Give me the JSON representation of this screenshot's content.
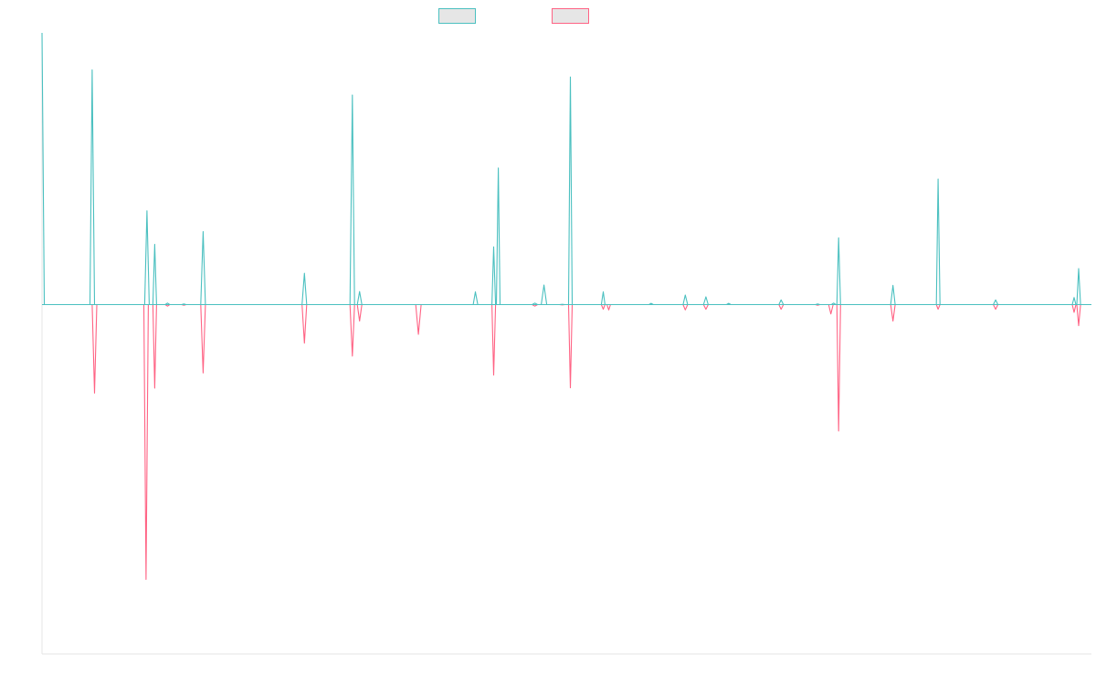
{
  "chart_data": {
    "type": "line",
    "title": "",
    "xlabel": "",
    "ylabel": "",
    "x_range": [
      0,
      1
    ],
    "ylim": [
      -1.0,
      1.0
    ],
    "grid": false,
    "legend_position": "top-center",
    "baseline": 0.125,
    "series": [
      {
        "color": "#4bc0c0",
        "fill": "#e6e6e6",
        "points": [
          [
            0.0,
            1.0
          ],
          [
            0.0022,
            0.125
          ],
          [
            0.0457,
            0.125
          ],
          [
            0.0478,
            0.881
          ],
          [
            0.05,
            0.125
          ],
          [
            0.0978,
            0.125
          ],
          [
            0.1,
            0.427
          ],
          [
            0.1022,
            0.125
          ],
          [
            0.1057,
            0.125
          ],
          [
            0.1074,
            0.319
          ],
          [
            0.1091,
            0.125
          ],
          [
            0.1174,
            0.125
          ],
          [
            0.1196,
            0.13
          ],
          [
            0.1217,
            0.125
          ],
          [
            0.133,
            0.125
          ],
          [
            0.1352,
            0.127
          ],
          [
            0.1374,
            0.125
          ],
          [
            0.1513,
            0.125
          ],
          [
            0.1535,
            0.36
          ],
          [
            0.1557,
            0.125
          ],
          [
            0.2478,
            0.125
          ],
          [
            0.25,
            0.226
          ],
          [
            0.2522,
            0.125
          ],
          [
            0.2935,
            0.125
          ],
          [
            0.2957,
            0.8
          ],
          [
            0.2978,
            0.125
          ],
          [
            0.3004,
            0.125
          ],
          [
            0.3026,
            0.167
          ],
          [
            0.3048,
            0.125
          ],
          [
            0.4109,
            0.125
          ],
          [
            0.413,
            0.166
          ],
          [
            0.4152,
            0.125
          ],
          [
            0.4287,
            0.125
          ],
          [
            0.4304,
            0.311
          ],
          [
            0.4322,
            0.125
          ],
          [
            0.433,
            0.125
          ],
          [
            0.4348,
            0.565
          ],
          [
            0.4365,
            0.125
          ],
          [
            0.467,
            0.125
          ],
          [
            0.4696,
            0.13
          ],
          [
            0.4722,
            0.125
          ],
          [
            0.4757,
            0.125
          ],
          [
            0.4783,
            0.188
          ],
          [
            0.4809,
            0.125
          ],
          [
            0.493,
            0.125
          ],
          [
            0.4957,
            0.126
          ],
          [
            0.4983,
            0.125
          ],
          [
            0.5017,
            0.125
          ],
          [
            0.5035,
            0.858
          ],
          [
            0.5052,
            0.125
          ],
          [
            0.533,
            0.125
          ],
          [
            0.5348,
            0.166
          ],
          [
            0.5365,
            0.125
          ],
          [
            0.5783,
            0.125
          ],
          [
            0.5804,
            0.129
          ],
          [
            0.5826,
            0.125
          ],
          [
            0.6109,
            0.125
          ],
          [
            0.613,
            0.156
          ],
          [
            0.6152,
            0.125
          ],
          [
            0.6304,
            0.125
          ],
          [
            0.6326,
            0.15
          ],
          [
            0.6348,
            0.125
          ],
          [
            0.6522,
            0.125
          ],
          [
            0.6543,
            0.129
          ],
          [
            0.6565,
            0.125
          ],
          [
            0.7022,
            0.125
          ],
          [
            0.7043,
            0.14
          ],
          [
            0.7065,
            0.125
          ],
          [
            0.737,
            0.125
          ],
          [
            0.7391,
            0.127
          ],
          [
            0.7413,
            0.125
          ],
          [
            0.7522,
            0.125
          ],
          [
            0.7543,
            0.13
          ],
          [
            0.7565,
            0.125
          ],
          [
            0.7574,
            0.125
          ],
          [
            0.7591,
            0.34
          ],
          [
            0.7609,
            0.125
          ],
          [
            0.8087,
            0.125
          ],
          [
            0.8109,
            0.187
          ],
          [
            0.813,
            0.125
          ],
          [
            0.8522,
            0.125
          ],
          [
            0.8539,
            0.529
          ],
          [
            0.8557,
            0.125
          ],
          [
            0.9065,
            0.125
          ],
          [
            0.9087,
            0.14
          ],
          [
            0.9109,
            0.125
          ],
          [
            0.9817,
            0.125
          ],
          [
            0.9835,
            0.148
          ],
          [
            0.9852,
            0.125
          ],
          [
            0.9861,
            0.125
          ],
          [
            0.9878,
            0.241
          ],
          [
            0.9896,
            0.125
          ],
          [
            1.0,
            0.125
          ]
        ]
      },
      {
        "color": "#ff6384",
        "fill": "#e6e6e6",
        "points": [
          [
            0.0,
            0.125
          ],
          [
            0.0478,
            0.125
          ],
          [
            0.05,
            -0.16
          ],
          [
            0.0522,
            0.125
          ],
          [
            0.097,
            0.125
          ],
          [
            0.0991,
            -0.76
          ],
          [
            0.1013,
            0.125
          ],
          [
            0.1057,
            0.125
          ],
          [
            0.1074,
            -0.144
          ],
          [
            0.1091,
            0.125
          ],
          [
            0.1174,
            0.125
          ],
          [
            0.1196,
            0.12
          ],
          [
            0.1217,
            0.125
          ],
          [
            0.133,
            0.125
          ],
          [
            0.1352,
            0.123
          ],
          [
            0.1374,
            0.125
          ],
          [
            0.1513,
            0.125
          ],
          [
            0.1535,
            -0.095
          ],
          [
            0.1557,
            0.125
          ],
          [
            0.2478,
            0.125
          ],
          [
            0.25,
            0.001
          ],
          [
            0.2522,
            0.125
          ],
          [
            0.2935,
            0.125
          ],
          [
            0.2957,
            -0.041
          ],
          [
            0.2978,
            0.125
          ],
          [
            0.3004,
            0.125
          ],
          [
            0.3026,
            0.072
          ],
          [
            0.3048,
            0.125
          ],
          [
            0.3561,
            0.125
          ],
          [
            0.3587,
            0.029
          ],
          [
            0.3613,
            0.125
          ],
          [
            0.4287,
            0.125
          ],
          [
            0.4304,
            -0.102
          ],
          [
            0.4322,
            0.125
          ],
          [
            0.467,
            0.125
          ],
          [
            0.4696,
            0.12
          ],
          [
            0.4722,
            0.125
          ],
          [
            0.493,
            0.125
          ],
          [
            0.4957,
            0.124
          ],
          [
            0.4983,
            0.125
          ],
          [
            0.5017,
            0.125
          ],
          [
            0.5035,
            -0.143
          ],
          [
            0.5052,
            0.125
          ],
          [
            0.533,
            0.125
          ],
          [
            0.5348,
            0.11
          ],
          [
            0.5365,
            0.125
          ],
          [
            0.5383,
            0.125
          ],
          [
            0.54,
            0.108
          ],
          [
            0.5417,
            0.125
          ],
          [
            0.6109,
            0.125
          ],
          [
            0.613,
            0.108
          ],
          [
            0.6152,
            0.125
          ],
          [
            0.6304,
            0.125
          ],
          [
            0.6326,
            0.11
          ],
          [
            0.6348,
            0.125
          ],
          [
            0.7022,
            0.125
          ],
          [
            0.7043,
            0.11
          ],
          [
            0.7065,
            0.125
          ],
          [
            0.737,
            0.125
          ],
          [
            0.7391,
            0.123
          ],
          [
            0.7413,
            0.125
          ],
          [
            0.7496,
            0.125
          ],
          [
            0.7517,
            0.095
          ],
          [
            0.7539,
            0.125
          ],
          [
            0.7574,
            0.125
          ],
          [
            0.7591,
            -0.282
          ],
          [
            0.7609,
            0.125
          ],
          [
            0.8087,
            0.125
          ],
          [
            0.8109,
            0.072
          ],
          [
            0.813,
            0.125
          ],
          [
            0.8522,
            0.125
          ],
          [
            0.8539,
            0.11
          ],
          [
            0.8557,
            0.125
          ],
          [
            0.9065,
            0.125
          ],
          [
            0.9087,
            0.11
          ],
          [
            0.9109,
            0.125
          ],
          [
            0.9817,
            0.125
          ],
          [
            0.9835,
            0.1
          ],
          [
            0.9852,
            0.125
          ],
          [
            0.9861,
            0.125
          ],
          [
            0.9878,
            0.057
          ],
          [
            0.9896,
            0.125
          ],
          [
            1.0,
            0.125
          ]
        ]
      }
    ]
  }
}
